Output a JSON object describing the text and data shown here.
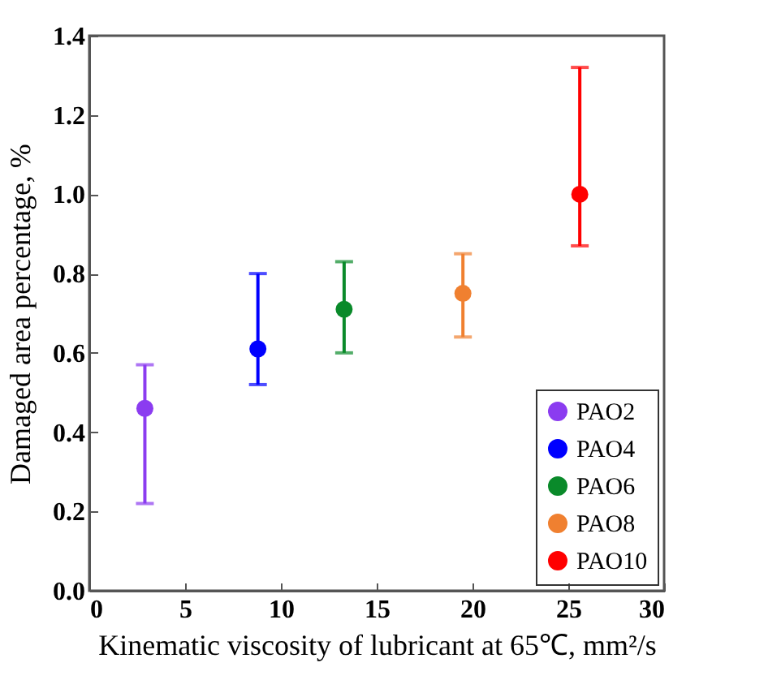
{
  "chart_data": {
    "type": "scatter",
    "xlabel": "Kinematic viscosity of lubricant at 65℃, mm²/s",
    "ylabel": "Damaged area percentage, %",
    "xlim": [
      0,
      30
    ],
    "xticks": [
      0,
      5,
      10,
      15,
      20,
      25,
      30
    ],
    "ylim": [
      0,
      1.4
    ],
    "yticks": [
      {
        "value": 0,
        "label": "0.0"
      },
      0.2,
      0.4,
      0.6,
      0.8,
      {
        "value": 1,
        "label": "1.0"
      },
      1.2,
      1.4
    ],
    "grid": false,
    "legend": "bottom right",
    "marker": "circle",
    "series": [
      {
        "name": "PAO2",
        "color": "#8b3cf0",
        "x": [
          2.9
        ],
        "values": [
          0.46
        ],
        "errors": [
          [
            0.22,
            0.57
          ]
        ]
      },
      {
        "name": "PAO4",
        "color": "#0000ff",
        "x": [
          8.8
        ],
        "values": [
          0.61
        ],
        "errors": [
          [
            0.52,
            0.8
          ]
        ]
      },
      {
        "name": "PAO6",
        "color": "#0a8a2a",
        "x": [
          13.3
        ],
        "values": [
          0.71
        ],
        "errors": [
          [
            0.6,
            0.83
          ]
        ]
      },
      {
        "name": "PAO8",
        "color": "#f08030",
        "x": [
          19.5
        ],
        "values": [
          0.75
        ],
        "errors": [
          [
            0.64,
            0.85
          ]
        ]
      },
      {
        "name": "PAO10",
        "color": "#ff0000",
        "x": [
          25.6
        ],
        "values": [
          1.0
        ],
        "errors": [
          [
            0.87,
            1.32
          ]
        ]
      }
    ]
  }
}
